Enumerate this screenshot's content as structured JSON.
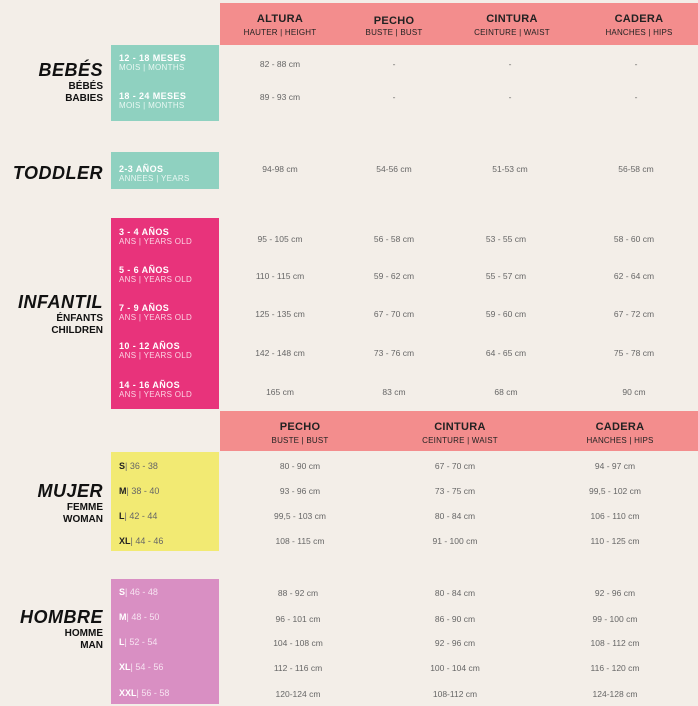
{
  "header1": {
    "cols": [
      {
        "title": "ALTURA",
        "sub": "HAUTER | HEIGHT"
      },
      {
        "title": "PECHO",
        "sub": "BUSTE | BUST"
      },
      {
        "title": "CINTURA",
        "sub": "CEINTURE | WAIST"
      },
      {
        "title": "CADERA",
        "sub": "HANCHES | HIPS"
      }
    ]
  },
  "header2": {
    "cols": [
      {
        "title": "PECHO",
        "sub": "BUSTE | BUST"
      },
      {
        "title": "CINTURA",
        "sub": "CEINTURE | WAIST"
      },
      {
        "title": "CADERA",
        "sub": "HANCHES | HIPS"
      }
    ]
  },
  "bebes": {
    "title": "BEBÉS",
    "sub1": "BÉBÉS",
    "sub2": "BABIES",
    "rows": [
      {
        "age": "12 - 18 MESES",
        "unit": "MOIS | MONTHS",
        "vals": [
          "82 - 88 cm",
          "-",
          "-",
          "-"
        ]
      },
      {
        "age": "18 - 24 MESES",
        "unit": "MOIS | MONTHS",
        "vals": [
          "89 - 93 cm",
          "-",
          "-",
          "-"
        ]
      }
    ]
  },
  "toddler": {
    "title": "TODDLER",
    "rows": [
      {
        "age": "2-3 AÑOS",
        "unit": "ANNEES | YEARS",
        "vals": [
          "94-98 cm",
          "54-56 cm",
          "51-53 cm",
          "56-58 cm"
        ]
      }
    ]
  },
  "infantil": {
    "title": "INFANTIL",
    "sub1": "ÉNFANTS",
    "sub2": "CHILDREN",
    "rows": [
      {
        "age": "3 - 4 AÑOS",
        "unit": "ANS | YEARS OLD",
        "vals": [
          "95 - 105 cm",
          "56 - 58 cm",
          "53 - 55 cm",
          "58 - 60 cm"
        ]
      },
      {
        "age": "5 - 6 AÑOS",
        "unit": "ANS | YEARS OLD",
        "vals": [
          "110 - 115 cm",
          "59 - 62 cm",
          "55 - 57 cm",
          "62 - 64 cm"
        ]
      },
      {
        "age": "7 - 9 AÑOS",
        "unit": "ANS | YEARS OLD",
        "vals": [
          "125 - 135 cm",
          "67 - 70 cm",
          "59 - 60 cm",
          "67 - 72 cm"
        ]
      },
      {
        "age": "10 - 12 AÑOS",
        "unit": "ANS | YEARS OLD",
        "vals": [
          "142 - 148 cm",
          "73 - 76 cm",
          "64 - 65 cm",
          "75 - 78 cm"
        ]
      },
      {
        "age": "14 - 16 AÑOS",
        "unit": "ANS | YEARS OLD",
        "vals": [
          "165 cm",
          "83 cm",
          "68 cm",
          "90 cm"
        ]
      }
    ]
  },
  "mujer": {
    "title": "MUJER",
    "sub1": "FEMME",
    "sub2": "WOMAN",
    "rows": [
      {
        "size": "S",
        "eu": "| 36 - 38",
        "vals": [
          "80 - 90 cm",
          "67 - 70 cm",
          "94 - 97 cm"
        ]
      },
      {
        "size": "M",
        "eu": "| 38 - 40",
        "vals": [
          "93 - 96 cm",
          "73 - 75 cm",
          "99,5 - 102 cm"
        ]
      },
      {
        "size": "L",
        "eu": "| 42 - 44",
        "vals": [
          "99,5 - 103 cm",
          "80 - 84 cm",
          "106 - 110 cm"
        ]
      },
      {
        "size": "XL",
        "eu": "| 44 - 46",
        "vals": [
          "108 - 115 cm",
          "91 - 100 cm",
          "110 - 125 cm"
        ]
      }
    ]
  },
  "hombre": {
    "title": "HOMBRE",
    "sub1": "HOMME",
    "sub2": "MAN",
    "rows": [
      {
        "size": "S",
        "eu": "| 46 - 48",
        "vals": [
          "88 - 92 cm",
          "80 - 84 cm",
          "92 - 96 cm"
        ]
      },
      {
        "size": "M",
        "eu": "| 48 - 50",
        "vals": [
          "96 - 101 cm",
          "86 - 90 cm",
          "99 - 100 cm"
        ]
      },
      {
        "size": "L",
        "eu": "| 52 - 54",
        "vals": [
          "104 - 108 cm",
          "92 - 96 cm",
          "108 - 112 cm"
        ]
      },
      {
        "size": "XL",
        "eu": "| 54 - 56",
        "vals": [
          "112 - 116 cm",
          "100 - 104 cm",
          "116 - 120 cm"
        ]
      },
      {
        "size": "XXL",
        "eu": "| 56 - 58",
        "vals": [
          "120-124 cm",
          "108-112 cm",
          "124-128 cm"
        ]
      }
    ]
  },
  "colors": {
    "header": "#f38d8d",
    "bebes": "#8fd1c0",
    "toddler": "#8fd1c0",
    "infantil": "#e8337b",
    "mujer": "#f2ea73",
    "hombre": "#d98fc3",
    "background": "#f3eee8"
  }
}
